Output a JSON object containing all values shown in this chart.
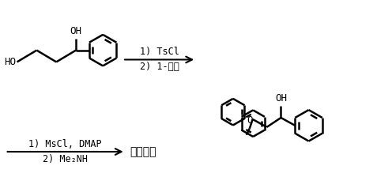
{
  "background_color": "#ffffff",
  "line_color": "#000000",
  "arrow1_label1": "1) TsCl",
  "arrow1_label2": "2) 1-氟萄",
  "arrow2_label1": "1) MsCl, DMAP",
  "arrow2_label2": "2) Me₂NH",
  "product_label": "达泊西汀",
  "figsize": [
    4.96,
    2.24
  ],
  "dpi": 100
}
